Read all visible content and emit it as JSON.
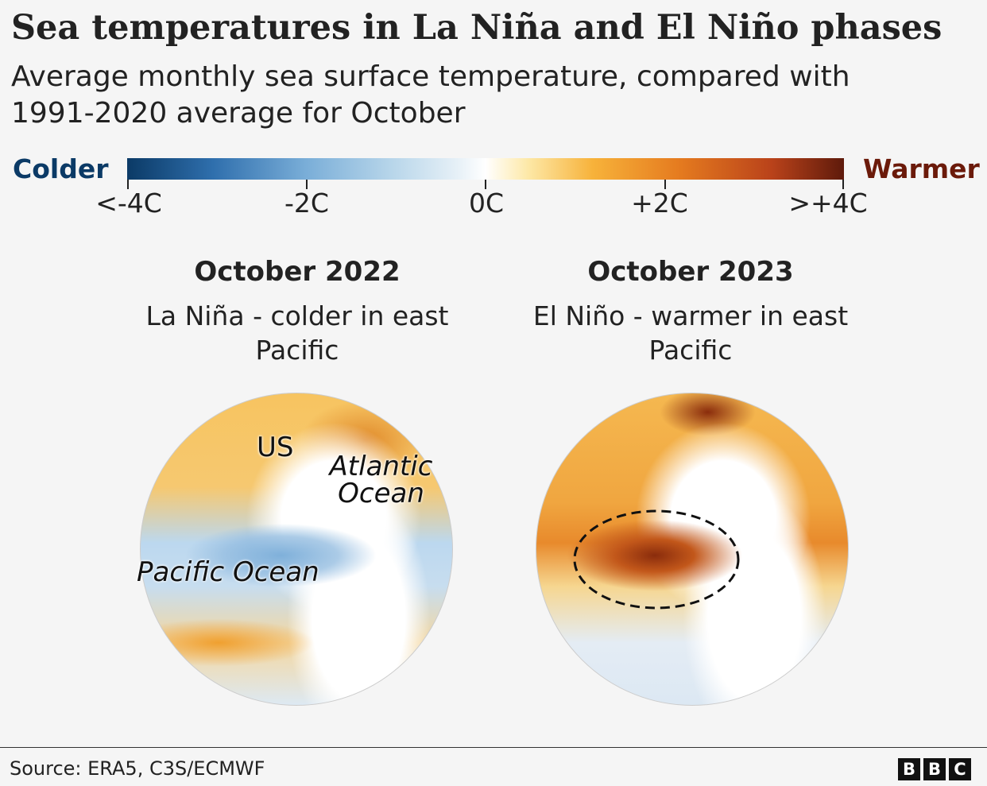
{
  "header": {
    "title": "Sea temperatures in La Niña and El Niño phases",
    "subtitle": "Average monthly sea surface temperature, compared with 1991-2020 average for October"
  },
  "legend": {
    "colder": "Colder",
    "warmer": "Warmer",
    "ticks": [
      "<-4C",
      "-2C",
      "0C",
      "+2C",
      ">+4C"
    ],
    "colors": {
      "cold": "#0b3a66",
      "neutral": "#ffffff",
      "warm": "#5e1a0b",
      "colder_label": "#0b3a66",
      "warmer_label": "#6b1a0a"
    }
  },
  "panels": [
    {
      "title": "October 2022",
      "subtitle": "La Niña - colder in east Pacific",
      "labels": {
        "us": "US",
        "atlantic": "Atlantic Ocean",
        "pacific": "Pacific Ocean"
      }
    },
    {
      "title": "October 2023",
      "subtitle": "El Niño - warmer in east Pacific"
    }
  ],
  "footer": {
    "source": "Source: ERA5, C3S/ECMWF",
    "logo": [
      "B",
      "B",
      "C"
    ]
  }
}
